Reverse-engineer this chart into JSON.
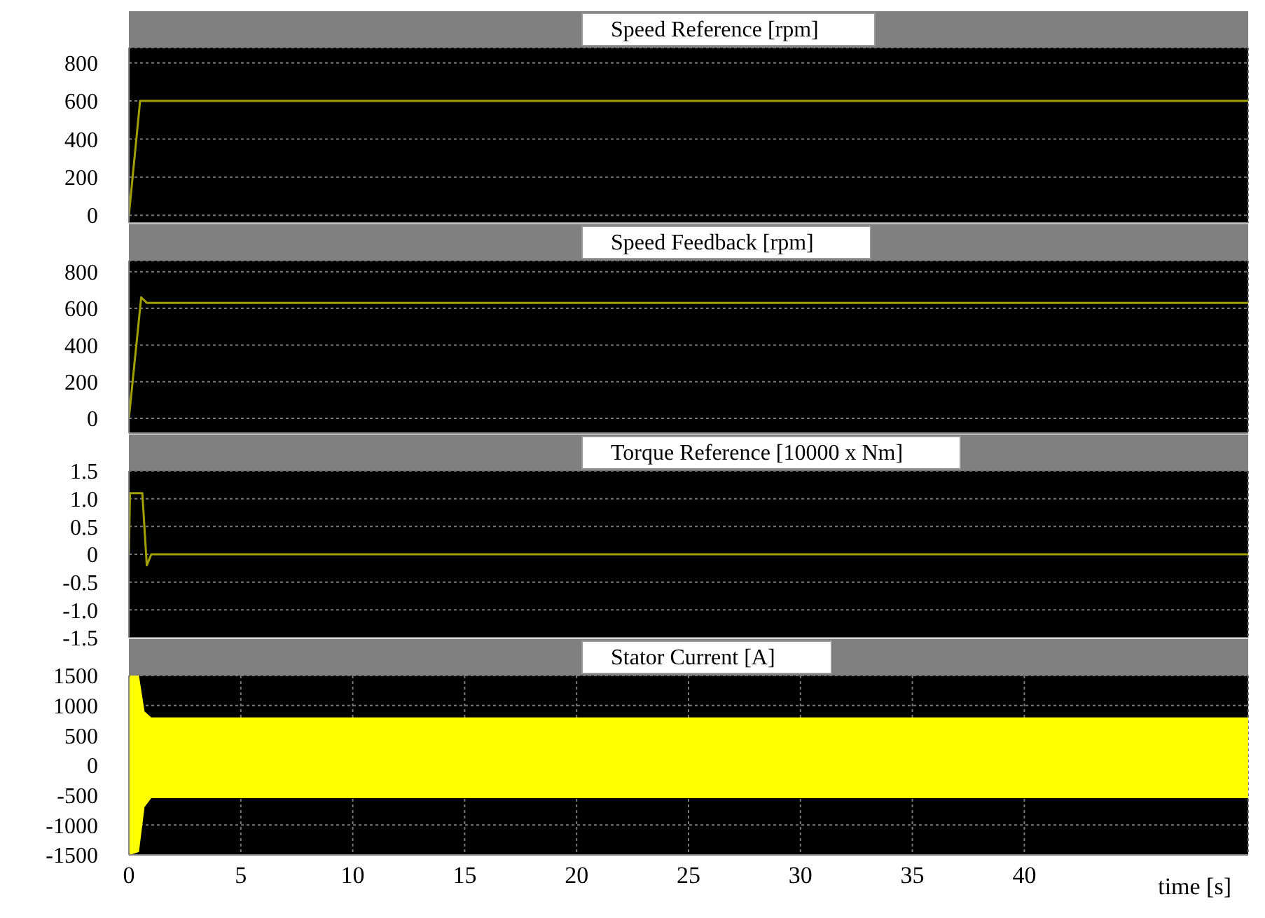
{
  "chart_data": [
    {
      "type": "line",
      "title": "Speed Reference [rpm]",
      "xlim": [
        0,
        50
      ],
      "xticks": [
        0,
        5,
        10,
        15,
        20,
        25,
        30,
        35,
        40
      ],
      "ylim": [
        -40,
        880
      ],
      "yticks": [
        0,
        200,
        400,
        600,
        800
      ],
      "grid": true,
      "tick_labels": "y",
      "series": [
        {
          "color": "#a0a000",
          "x": [
            0,
            0.5,
            50
          ],
          "values": [
            0,
            600,
            600
          ]
        }
      ]
    },
    {
      "type": "line",
      "title": "Speed Feedback [rpm]",
      "xlim": [
        0,
        50
      ],
      "xticks": [
        0,
        5,
        10,
        15,
        20,
        25,
        30,
        35,
        40
      ],
      "ylim": [
        -80,
        860
      ],
      "yticks": [
        0,
        200,
        400,
        600,
        800
      ],
      "grid": true,
      "tick_labels": "y",
      "series": [
        {
          "color": "#a0a000",
          "x": [
            0,
            0.55,
            0.8,
            50
          ],
          "values": [
            0,
            660,
            630,
            630
          ]
        }
      ]
    },
    {
      "type": "line",
      "title": "Torque Reference [10000 x Nm]",
      "xlim": [
        0,
        50
      ],
      "xticks": [
        0,
        5,
        10,
        15,
        20,
        25,
        30,
        35,
        40
      ],
      "ylim": [
        -1.5,
        1.5
      ],
      "yticks": [
        {
          "value": -1.5,
          "label": "-1.5"
        },
        {
          "value": -1,
          "label": "-1.0"
        },
        -0.5,
        0,
        0.5,
        {
          "value": 1,
          "label": "1.0"
        },
        1.5
      ],
      "grid": true,
      "tick_labels": "y",
      "series": [
        {
          "color": "#a0a000",
          "x": [
            0,
            0.05,
            0.6,
            0.8,
            1.0,
            50
          ],
          "values": [
            0,
            1.1,
            1.1,
            -0.2,
            0,
            0
          ]
        }
      ]
    },
    {
      "type": "line",
      "title": "Stator Current [A]",
      "xlabel": "time [s]",
      "xlim": [
        0,
        50
      ],
      "xticks": [
        0,
        5,
        10,
        15,
        20,
        25,
        30,
        35,
        40
      ],
      "ylim": [
        -1500,
        1500
      ],
      "yticks": [
        -1500,
        -1000,
        -500,
        0,
        500,
        1000,
        1500
      ],
      "grid": true,
      "series": [
        {
          "color": "#ffff00",
          "x": [
            0,
            0.05,
            0.45,
            0.7,
            1.0,
            50
          ],
          "values": [
            0,
            0,
            0,
            0,
            0,
            0
          ],
          "lower": [
            -1400,
            -1500,
            -1450,
            -700,
            -550,
            -550
          ],
          "upper": [
            1400,
            1500,
            1500,
            900,
            800,
            800
          ]
        }
      ]
    }
  ]
}
